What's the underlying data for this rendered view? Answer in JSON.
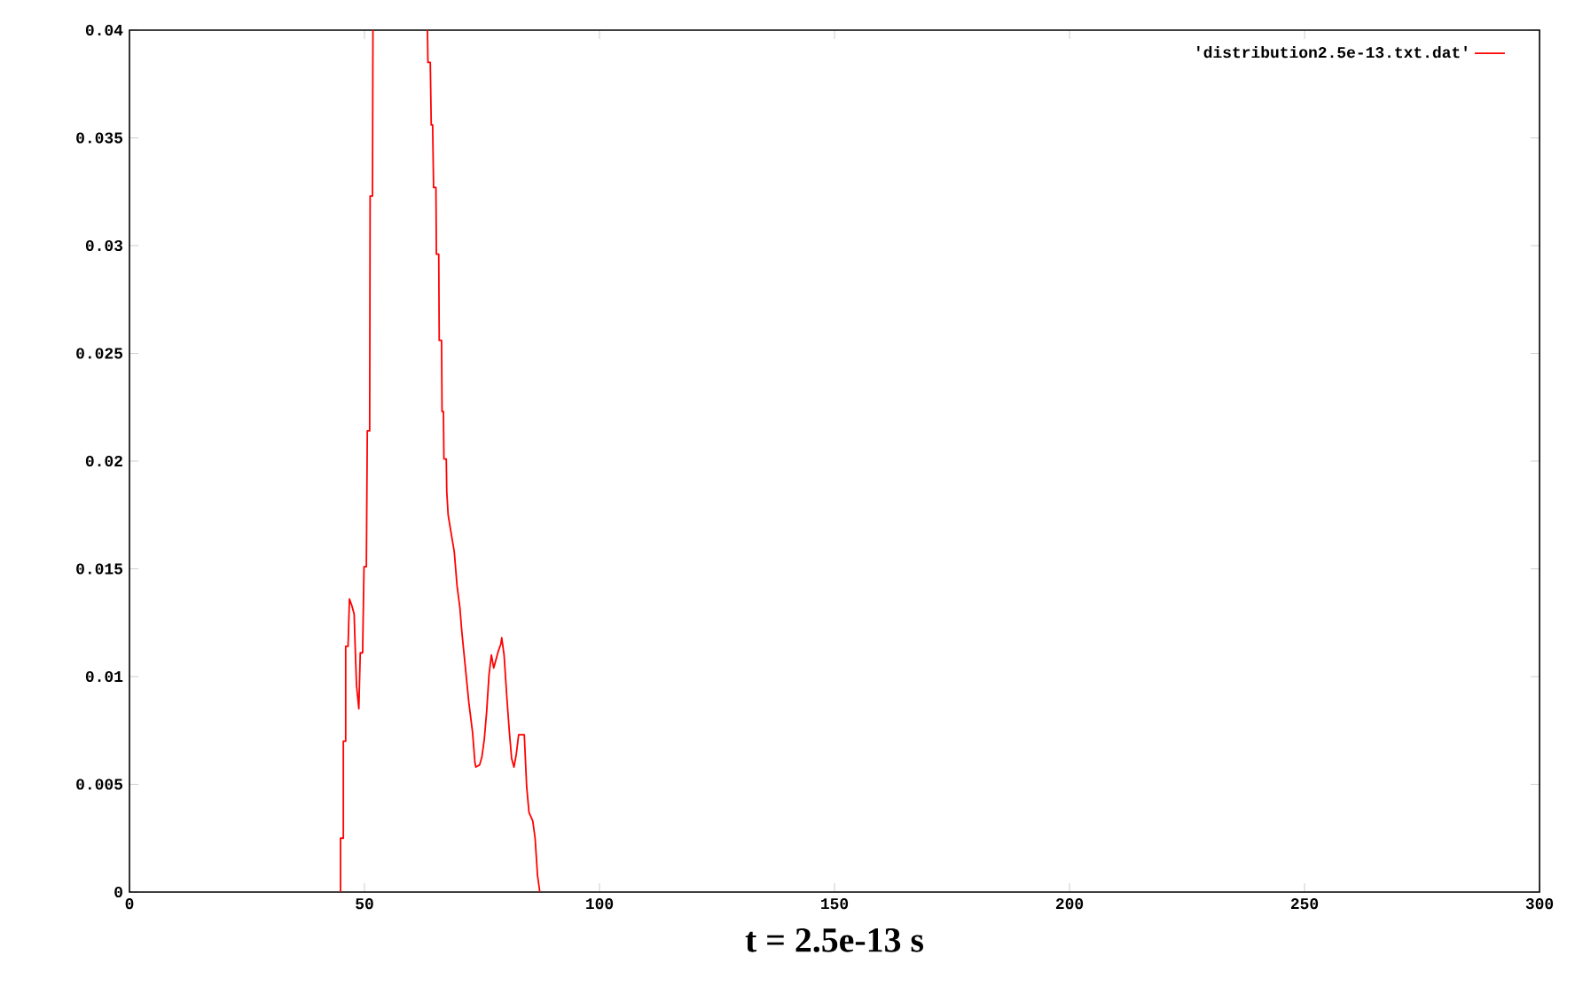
{
  "chart_data": {
    "type": "line",
    "xlabel": "t = 2.5e-13 s",
    "xlim": [
      0,
      300
    ],
    "ylim": [
      0,
      0.04
    ],
    "xticks": [
      0,
      50,
      100,
      150,
      200,
      250,
      300
    ],
    "yticks": [
      0,
      0.005,
      0.01,
      0.015,
      0.02,
      0.025,
      0.03,
      0.035,
      0.04
    ],
    "grid": false,
    "legend": "top right",
    "marker": "none",
    "line_style": "solid",
    "x": [
      44.9,
      44.9,
      45.5,
      45.5,
      46.0,
      46.0,
      46.5,
      46.8,
      47.3,
      47.8,
      48.0,
      48.3,
      48.8,
      49.1,
      49.6,
      49.9,
      50.4,
      50.6,
      51.1,
      51.2,
      51.7,
      51.8,
      57.5,
      63.4,
      63.5,
      64.0,
      64.2,
      64.5,
      64.7,
      65.2,
      65.3,
      65.8,
      65.9,
      66.4,
      66.5,
      66.8,
      66.9,
      67.4,
      67.5,
      67.8,
      68.4,
      69.1,
      69.7,
      70.3,
      70.7,
      71.2,
      71.7,
      72.2,
      73.0,
      73.5,
      73.7,
      74.5,
      75.0,
      75.5,
      76.0,
      76.5,
      77.0,
      77.5,
      78.0,
      78.5,
      79.0,
      79.2,
      79.7,
      80.3,
      80.8,
      81.3,
      81.8,
      82.3,
      82.8,
      84.0,
      84.5,
      85.0,
      85.8,
      86.3,
      86.8,
      87.3
    ],
    "series": [
      {
        "name": "'distribution2.5e-13.txt.dat'",
        "color": "#ff0000",
        "values": [
          0,
          0.0025,
          0.0025,
          0.007,
          0.007,
          0.0114,
          0.0114,
          0.0136,
          0.0133,
          0.0129,
          0.0115,
          0.0096,
          0.0085,
          0.0111,
          0.0111,
          0.0151,
          0.0151,
          0.0214,
          0.0214,
          0.0323,
          0.0323,
          0.04,
          null,
          0.04,
          0.0385,
          0.0385,
          0.0356,
          0.0356,
          0.0327,
          0.0327,
          0.0296,
          0.0296,
          0.0256,
          0.0256,
          0.0223,
          0.0223,
          0.0201,
          0.0201,
          0.0186,
          0.0175,
          0.0167,
          0.0158,
          0.0142,
          0.0132,
          0.0121,
          0.011,
          0.0099,
          0.0088,
          0.0074,
          0.006,
          0.0058,
          0.0059,
          0.0063,
          0.0071,
          0.0084,
          0.0101,
          0.011,
          0.0104,
          0.0108,
          0.0112,
          0.0115,
          0.0118,
          0.011,
          0.009,
          0.0075,
          0.0062,
          0.0058,
          0.0064,
          0.0073,
          0.0073,
          0.0049,
          0.0037,
          0.0033,
          0.0025,
          0.0008,
          0
        ]
      }
    ]
  }
}
